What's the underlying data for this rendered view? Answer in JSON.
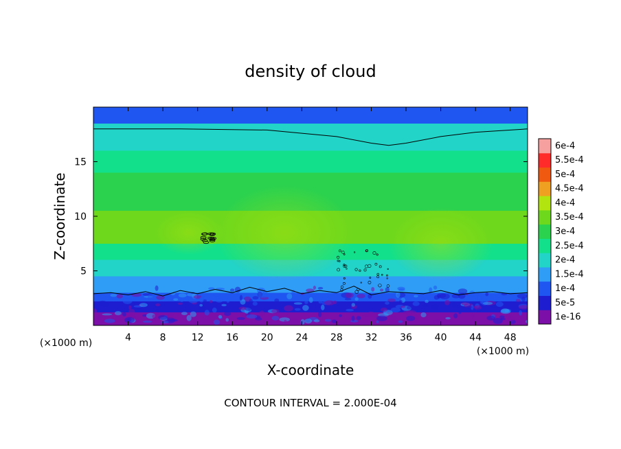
{
  "chart_data": {
    "type": "heatmap",
    "title": "density of cloud",
    "xlabel": "X-coordinate",
    "ylabel": "Z-coordinate",
    "x_unit": "(×1000 m)",
    "y_unit": "(×1000 m)",
    "xlim": [
      0,
      50
    ],
    "ylim": [
      0,
      20
    ],
    "x_ticks": [
      4,
      8,
      12,
      16,
      20,
      24,
      28,
      32,
      36,
      40,
      44,
      48
    ],
    "y_ticks": [
      5,
      10,
      15
    ],
    "contour_interval_text": "CONTOUR INTERVAL = 2.000E-04",
    "colorbar": {
      "labels": [
        "1e-16",
        "5e-5",
        "1e-4",
        "1.5e-4",
        "2e-4",
        "2.5e-4",
        "3e-4",
        "3.5e-4",
        "4e-4",
        "4.5e-4",
        "5e-4",
        "5.5e-4",
        "6e-4"
      ],
      "values": [
        1e-16,
        5e-05,
        0.0001,
        0.00015,
        0.0002,
        0.00025,
        0.0003,
        0.00035,
        0.0004,
        0.00045,
        0.0005,
        0.00055,
        0.0006
      ],
      "colors": [
        "#7b0fa8",
        "#1e1ed0",
        "#1f55f0",
        "#2f9df5",
        "#22d3c8",
        "#13e08a",
        "#2ad24e",
        "#6ed81c",
        "#b2e40f",
        "#f0a020",
        "#f05a10",
        "#ff2a2a",
        "#f7a0a0"
      ]
    },
    "field_bands": [
      {
        "z": [
          0.0,
          1.2
        ],
        "value": 1e-16
      },
      {
        "z": [
          1.2,
          2.2
        ],
        "value": 5e-05
      },
      {
        "z": [
          2.2,
          3.0
        ],
        "value": 0.0001
      },
      {
        "z": [
          3.0,
          4.5
        ],
        "value": 0.00015
      },
      {
        "z": [
          4.5,
          6.0
        ],
        "value": 0.0002
      },
      {
        "z": [
          6.0,
          7.5
        ],
        "value": 0.00025
      },
      {
        "z": [
          7.5,
          10.5
        ],
        "value": 0.00035
      },
      {
        "z": [
          10.5,
          14.0
        ],
        "value": 0.0003
      },
      {
        "z": [
          14.0,
          16.0
        ],
        "value": 0.00025
      },
      {
        "z": [
          16.0,
          18.5
        ],
        "value": 0.0002
      },
      {
        "z": [
          18.5,
          20.0
        ],
        "value": 0.0001
      }
    ],
    "contour_upper": {
      "x": [
        0,
        10,
        20,
        28,
        32,
        34,
        36,
        40,
        44,
        50
      ],
      "z": [
        18.0,
        18.0,
        17.9,
        17.3,
        16.7,
        16.5,
        16.7,
        17.3,
        17.7,
        18.0
      ]
    },
    "contour_lower": {
      "x": [
        0,
        2,
        4,
        6,
        8,
        10,
        12,
        14,
        16,
        18,
        20,
        22,
        24,
        26,
        28,
        30,
        32,
        34,
        36,
        38,
        40,
        42,
        44,
        46,
        48,
        50
      ],
      "z": [
        2.9,
        3.0,
        2.8,
        3.1,
        2.7,
        3.2,
        2.9,
        3.3,
        3.0,
        3.5,
        3.1,
        3.4,
        2.9,
        3.2,
        3.0,
        3.6,
        2.8,
        3.1,
        3.0,
        2.9,
        3.2,
        2.8,
        3.0,
        3.1,
        2.9,
        3.0
      ]
    }
  }
}
